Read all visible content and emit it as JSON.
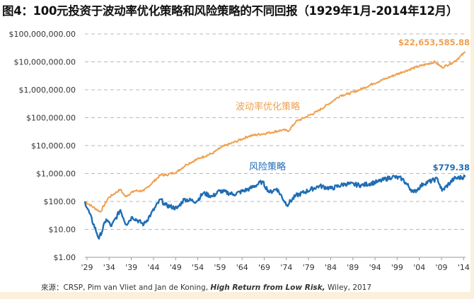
{
  "title": "图4：100元投资于波动率优化策略和风险策略的不同回报（1929年1月-2014年12月）",
  "source": {
    "prefix": "來源：CRSP, Pim van Vliet and Jan de Koning, ",
    "book": "High Return from Low Risk,",
    "suffix": "  Wiley, 2017"
  },
  "chart_data": {
    "type": "line",
    "title": "图4：100元投资于波动率优化策略和风险策略的不同回报（1929年1月-2014年12月）",
    "xlabel": "",
    "ylabel": "",
    "yscale": "log",
    "ylim": [
      1,
      100000000
    ],
    "xlim": [
      1929,
      2014.9
    ],
    "grid": "horizontal dashed",
    "y_ticks": [
      "$1.00",
      "$10.00",
      "$100.00",
      "$1,000.00",
      "$10,000.00",
      "$100,000.00",
      "$1,000,000.00",
      "$10,000,000.00",
      "$100,000,000.00"
    ],
    "x_ticks": [
      "'29",
      "'34",
      "'39",
      "'44",
      "'49",
      "'54",
      "'59",
      "'64",
      "'69",
      "'74",
      "'79",
      "'84",
      "'89",
      "'94",
      "'99",
      "'04",
      "'09",
      "'14"
    ],
    "series": [
      {
        "name": "波动率优化策略",
        "color": "#f0a050",
        "end_label": "$22,653,585.88",
        "points": [
          [
            1929,
            100
          ],
          [
            1932.5,
            42
          ],
          [
            1934.3,
            135
          ],
          [
            1937,
            270
          ],
          [
            1938.1,
            150
          ],
          [
            1940.2,
            240
          ],
          [
            1942.3,
            240
          ],
          [
            1946.1,
            900
          ],
          [
            1947.1,
            870
          ],
          [
            1949.8,
            1150
          ],
          [
            1951.9,
            2100
          ],
          [
            1955.1,
            3700
          ],
          [
            1957.8,
            5300
          ],
          [
            1959.9,
            8900
          ],
          [
            1963.1,
            14000
          ],
          [
            1966,
            22000
          ],
          [
            1970.7,
            29000
          ],
          [
            1973.5,
            36000
          ],
          [
            1975,
            34000
          ],
          [
            1976.6,
            72000
          ],
          [
            1981.4,
            165000
          ],
          [
            1984,
            310000
          ],
          [
            1986.7,
            630000
          ],
          [
            1988.3,
            700000
          ],
          [
            1991,
            1000000
          ],
          [
            1994.2,
            1700000
          ],
          [
            1997.4,
            2700000
          ],
          [
            2000.6,
            4300000
          ],
          [
            2003.8,
            6500000
          ],
          [
            2008,
            10000000
          ],
          [
            2009.6,
            6300000
          ],
          [
            2012.3,
            10000000
          ],
          [
            2014.9,
            22653585.88
          ]
        ]
      },
      {
        "name": "风险策略",
        "color": "#1f6db5",
        "end_label": "$779.38",
        "points": [
          [
            1929,
            100
          ],
          [
            1932.2,
            4.6
          ],
          [
            1933.8,
            23
          ],
          [
            1935,
            13
          ],
          [
            1937,
            50
          ],
          [
            1938.3,
            15
          ],
          [
            1939.7,
            28
          ],
          [
            1942.3,
            15
          ],
          [
            1943.9,
            35
          ],
          [
            1946.1,
            120
          ],
          [
            1947.1,
            75
          ],
          [
            1949.8,
            56
          ],
          [
            1951.4,
            120
          ],
          [
            1954.2,
            100
          ],
          [
            1955.7,
            200
          ],
          [
            1957.8,
            150
          ],
          [
            1959.4,
            240
          ],
          [
            1962.6,
            180
          ],
          [
            1966.3,
            290
          ],
          [
            1969,
            510
          ],
          [
            1970.7,
            210
          ],
          [
            1972.3,
            290
          ],
          [
            1974.6,
            75
          ],
          [
            1976.6,
            160
          ],
          [
            1981.9,
            360
          ],
          [
            1984.6,
            290
          ],
          [
            1987.8,
            430
          ],
          [
            1991.5,
            380
          ],
          [
            1995.2,
            510
          ],
          [
            1998.4,
            770
          ],
          [
            2000.6,
            650
          ],
          [
            2003.2,
            210
          ],
          [
            2005.4,
            430
          ],
          [
            2008.6,
            650
          ],
          [
            2009.6,
            240
          ],
          [
            2012.3,
            650
          ],
          [
            2014.9,
            779.38
          ]
        ]
      }
    ]
  }
}
